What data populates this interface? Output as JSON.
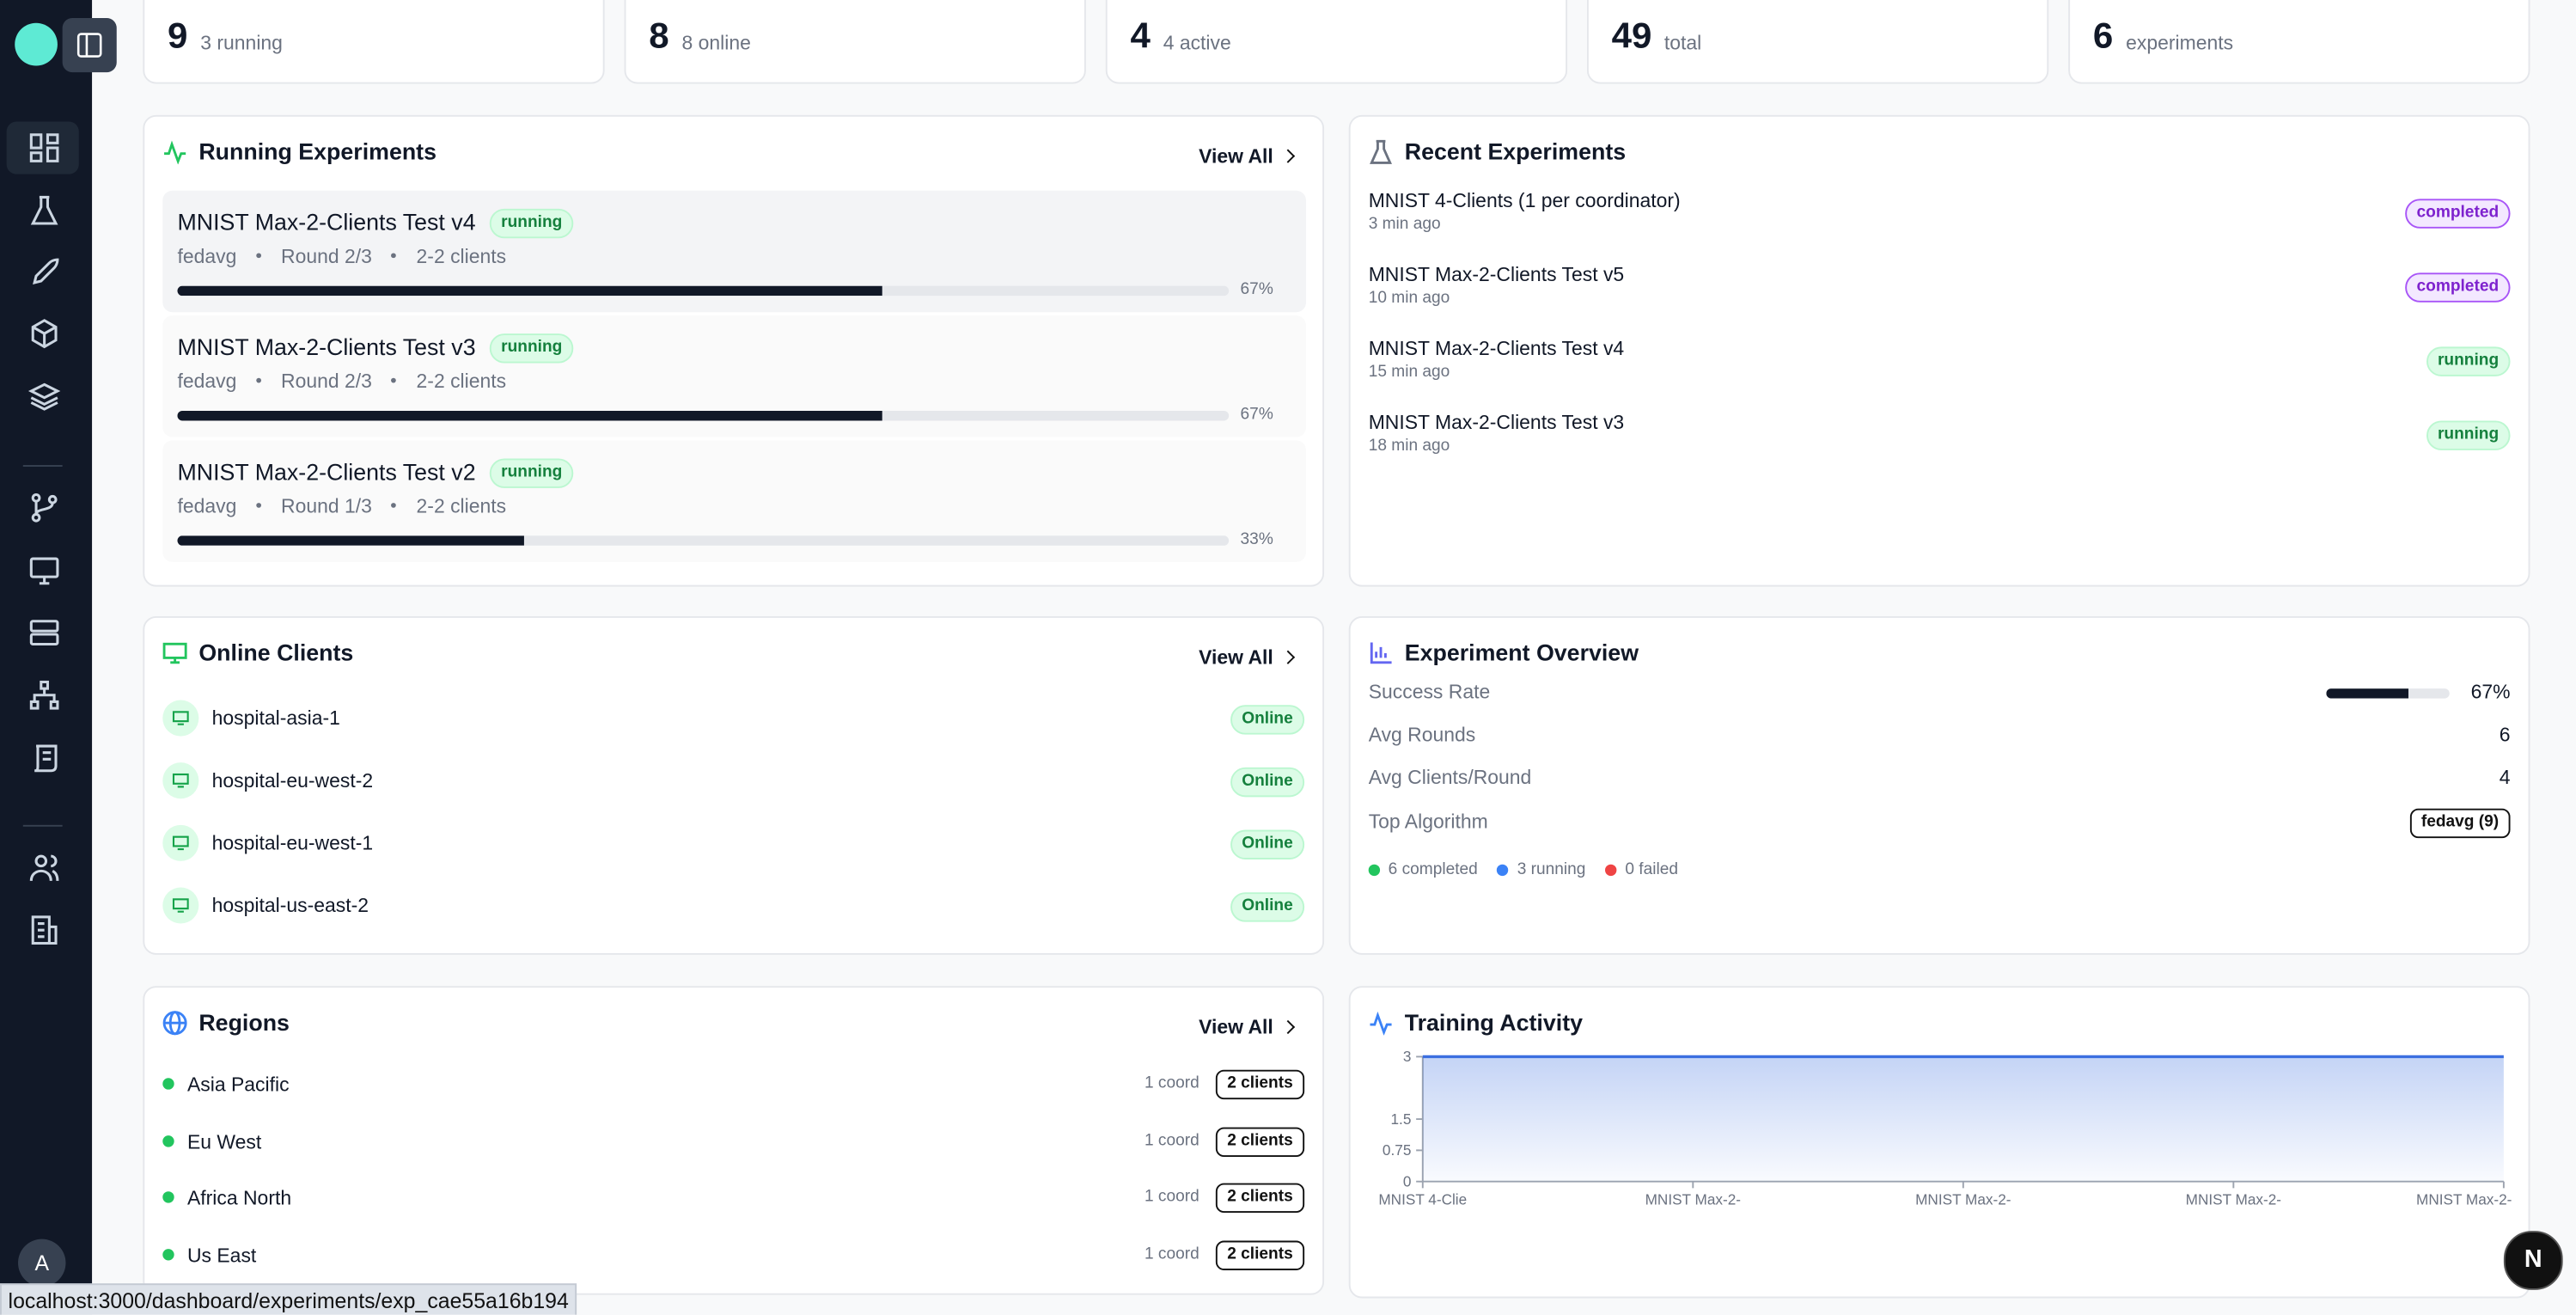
{
  "sidebar": {
    "avatar": "A"
  },
  "stats": [
    {
      "value": 9,
      "detail": "3 running"
    },
    {
      "value": 8,
      "detail": "8 online"
    },
    {
      "value": 4,
      "detail": "4 active"
    },
    {
      "value": 49,
      "detail": "total"
    },
    {
      "value": 6,
      "detail": "experiments"
    }
  ],
  "running": {
    "title": "Running Experiments",
    "view_all": "View All",
    "items": [
      {
        "name": "MNIST Max-2-Clients Test v4",
        "status": "running",
        "algorithm": "fedavg",
        "round": "Round 2/3",
        "clients": "2-2 clients",
        "progress": 67,
        "progress_label": "67%"
      },
      {
        "name": "MNIST Max-2-Clients Test v3",
        "status": "running",
        "algorithm": "fedavg",
        "round": "Round 2/3",
        "clients": "2-2 clients",
        "progress": 67,
        "progress_label": "67%"
      },
      {
        "name": "MNIST Max-2-Clients Test v2",
        "status": "running",
        "algorithm": "fedavg",
        "round": "Round 1/3",
        "clients": "2-2 clients",
        "progress": 33,
        "progress_label": "33%"
      }
    ]
  },
  "recent": {
    "title": "Recent Experiments",
    "items": [
      {
        "name": "MNIST 4-Clients (1 per coordinator)",
        "time": "3 min ago",
        "status": "completed"
      },
      {
        "name": "MNIST Max-2-Clients Test v5",
        "time": "10 min ago",
        "status": "completed"
      },
      {
        "name": "MNIST Max-2-Clients Test v4",
        "time": "15 min ago",
        "status": "running"
      },
      {
        "name": "MNIST Max-2-Clients Test v3",
        "time": "18 min ago",
        "status": "running"
      }
    ]
  },
  "clients": {
    "title": "Online Clients",
    "view_all": "View All",
    "items": [
      {
        "name": "hospital-asia-1",
        "status": "Online"
      },
      {
        "name": "hospital-eu-west-2",
        "status": "Online"
      },
      {
        "name": "hospital-eu-west-1",
        "status": "Online"
      },
      {
        "name": "hospital-us-east-2",
        "status": "Online"
      }
    ]
  },
  "overview": {
    "title": "Experiment Overview",
    "success_rate": {
      "label": "Success Rate",
      "value": 67,
      "value_label": "67%"
    },
    "rows": [
      {
        "label": "Avg Rounds",
        "value": 6
      },
      {
        "label": "Avg Clients/Round",
        "value": 4
      }
    ],
    "top_algorithm": {
      "label": "Top Algorithm",
      "value": "fedavg (9)"
    },
    "legend": [
      "6 completed",
      "3 running",
      "0 failed"
    ]
  },
  "regions": {
    "title": "Regions",
    "view_all": "View All",
    "items": [
      {
        "name": "Asia Pacific",
        "coords": "1 coord",
        "clients": "2 clients"
      },
      {
        "name": "Eu West",
        "coords": "1 coord",
        "clients": "2 clients"
      },
      {
        "name": "Africa North",
        "coords": "1 coord",
        "clients": "2 clients"
      },
      {
        "name": "Us East",
        "coords": "1 coord",
        "clients": "2 clients"
      }
    ]
  },
  "training": {
    "title": "Training Activity",
    "categories": [
      "MNIST 4-Clie",
      "MNIST Max-2-",
      "MNIST Max-2-",
      "MNIST Max-2-",
      "MNIST Max-2-"
    ],
    "values": [
      3,
      3,
      3,
      3,
      3
    ],
    "ylim": [
      0,
      3
    ],
    "yticks": [
      0,
      0.75,
      1.5,
      3
    ],
    "color": "#3b6fe0"
  },
  "status_bar": "localhost:3000/dashboard/experiments/exp_cae55a16b194"
}
